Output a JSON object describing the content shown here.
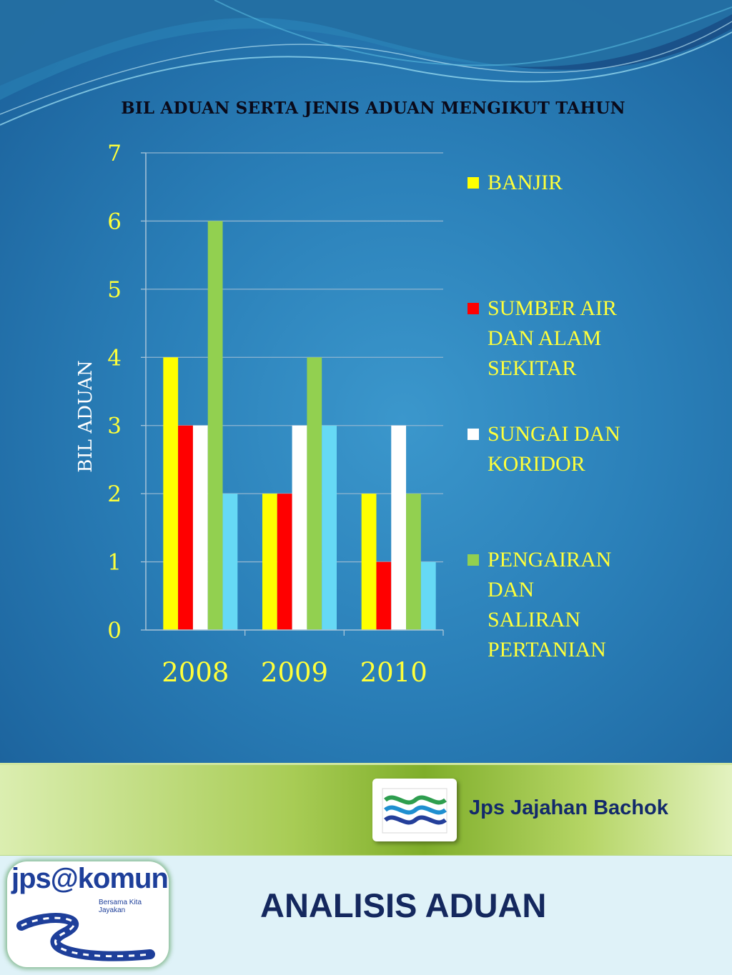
{
  "slide": {
    "org_name": "Jps Jajahan Bachok",
    "page_title": "ANALISIS ADUAN",
    "logo_text": "jps@komuniti",
    "logo_tagline": "Bersama Kita Jayakan"
  },
  "chart_data": {
    "type": "bar",
    "title": "BIL  ADUAN SERTA JENIS ADUAN MENGIKUT TAHUN",
    "xlabel": "",
    "ylabel": "BIL  ADUAN",
    "categories": [
      "2008",
      "2009",
      "2010"
    ],
    "ylim": [
      0,
      7
    ],
    "yticks": [
      0,
      1,
      2,
      3,
      4,
      5,
      6,
      7
    ],
    "grid": true,
    "legend_position": "right",
    "series": [
      {
        "name": "BANJIR",
        "color": "#ffff00",
        "values": [
          4,
          2,
          2
        ]
      },
      {
        "name": "SUMBER AIR DAN ALAM SEKITAR",
        "color": "#ff0000",
        "values": [
          3,
          2,
          1
        ]
      },
      {
        "name": "SUNGAI DAN KORIDOR",
        "color": "#ffffff",
        "values": [
          3,
          3,
          3
        ]
      },
      {
        "name": "PENGAIRAN DAN SALIRAN PERTANIAN",
        "color": "#92d050",
        "values": [
          6,
          4,
          2
        ]
      },
      {
        "name": "",
        "color": "#66d9f5",
        "values": [
          2,
          3,
          1
        ]
      }
    ]
  }
}
